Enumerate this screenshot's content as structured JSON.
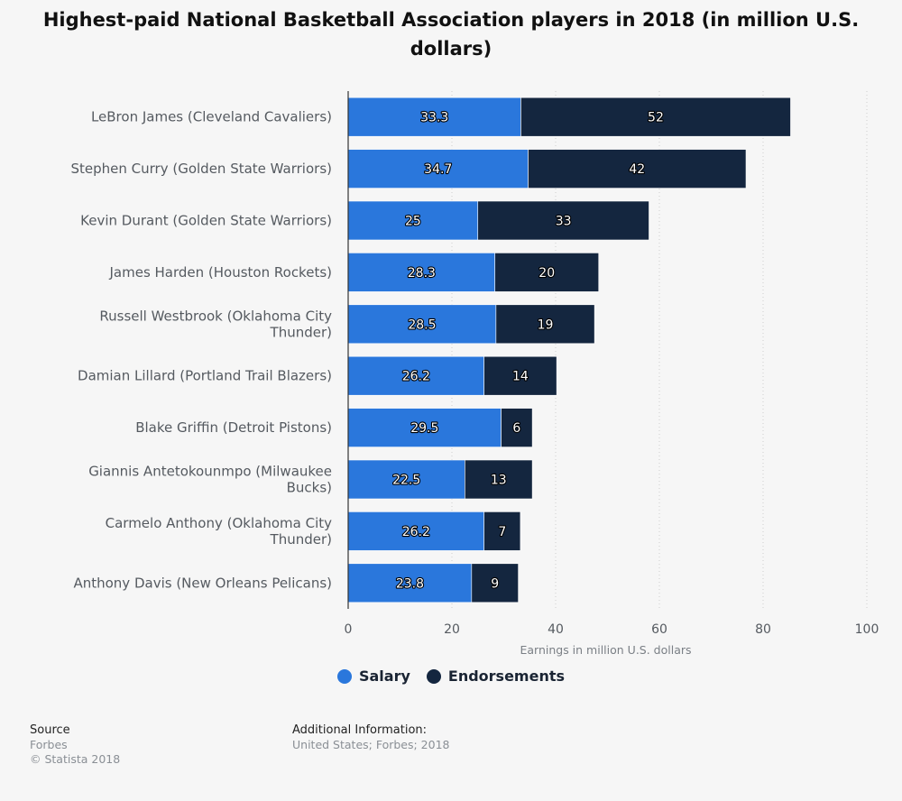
{
  "title": "Highest-paid National Basketball Association players in 2018 (in million U.S. dollars)",
  "legend": [
    {
      "label": "Salary",
      "color": "#2a77dc"
    },
    {
      "label": "Endorsements",
      "color": "#14263f"
    }
  ],
  "footer": {
    "source_heading": "Source",
    "source_lines": [
      "Forbes",
      "© Statista 2018"
    ],
    "additional_heading": "Additional Information:",
    "additional_text": "United States; Forbes; 2018"
  },
  "chart_data": {
    "type": "bar",
    "orientation": "horizontal",
    "stacked": true,
    "categories": [
      "LeBron James (Cleveland Cavaliers)",
      "Stephen Curry (Golden State Warriors)",
      "Kevin Durant (Golden State Warriors)",
      "James Harden (Houston Rockets)",
      "Russell Westbrook (Oklahoma City Thunder)",
      "Damian Lillard (Portland Trail Blazers)",
      "Blake Griffin (Detroit Pistons)",
      "Giannis Antetokounmpo (Milwaukee Bucks)",
      "Carmelo Anthony (Oklahoma City Thunder)",
      "Anthony Davis (New Orleans Pelicans)"
    ],
    "category_lines": [
      [
        "LeBron James (Cleveland Cavaliers)"
      ],
      [
        "Stephen Curry (Golden State Warriors)"
      ],
      [
        "Kevin Durant (Golden State Warriors)"
      ],
      [
        "James Harden (Houston Rockets)"
      ],
      [
        "Russell Westbrook (Oklahoma City",
        "Thunder)"
      ],
      [
        "Damian Lillard (Portland Trail Blazers)"
      ],
      [
        "Blake Griffin (Detroit Pistons)"
      ],
      [
        "Giannis Antetokounmpo (Milwaukee",
        "Bucks)"
      ],
      [
        "Carmelo Anthony (Oklahoma City",
        "Thunder)"
      ],
      [
        "Anthony Davis (New Orleans Pelicans)"
      ]
    ],
    "series": [
      {
        "name": "Salary",
        "values": [
          33.3,
          34.7,
          25,
          28.3,
          28.5,
          26.2,
          29.5,
          22.5,
          26.2,
          23.8
        ]
      },
      {
        "name": "Endorsements",
        "values": [
          52,
          42,
          33,
          20,
          19,
          14,
          6,
          13,
          7,
          9
        ]
      }
    ],
    "xlabel": "Earnings in million U.S. dollars",
    "xlim": [
      0,
      100
    ],
    "xticks": [
      0,
      20,
      40,
      60,
      80,
      100
    ],
    "grid": true
  }
}
